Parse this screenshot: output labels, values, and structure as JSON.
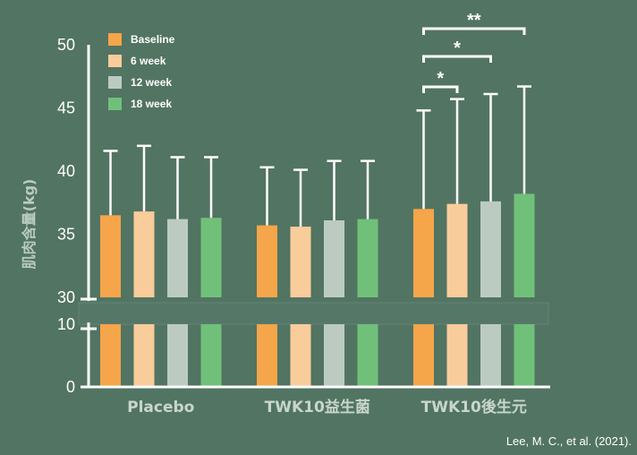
{
  "chart_data": {
    "type": "bar",
    "ylabel": "肌肉含量(kg)",
    "categories": [
      "Placebo",
      "TWK10益生菌",
      "TWK10後生元"
    ],
    "series": [
      {
        "name": "Baseline",
        "color": "#f5a54a",
        "values": [
          36.5,
          35.7,
          37.0
        ],
        "errors": [
          5.1,
          4.6,
          7.8
        ]
      },
      {
        "name": "6 week",
        "color": "#f9cc9b",
        "values": [
          36.8,
          35.6,
          37.4
        ],
        "errors": [
          5.2,
          4.5,
          8.3
        ]
      },
      {
        "name": "12 week",
        "color": "#bccbc2",
        "values": [
          36.2,
          36.1,
          37.6
        ],
        "errors": [
          4.9,
          4.7,
          8.5
        ]
      },
      {
        "name": "18 week",
        "color": "#70c07a",
        "values": [
          36.3,
          36.2,
          38.2
        ],
        "errors": [
          4.8,
          4.6,
          8.5
        ]
      }
    ],
    "axis_break": true,
    "yticks_upper": [
      30,
      35,
      40,
      45,
      50
    ],
    "yticks_lower": [
      0,
      10
    ],
    "ylim_upper": [
      30,
      50
    ],
    "ylim_lower": [
      0,
      10
    ],
    "grid": false,
    "legend_position": "top-left",
    "significance": [
      {
        "group": "TWK10後生元",
        "from": "Baseline",
        "to": "6 week",
        "label": "*"
      },
      {
        "group": "TWK10後生元",
        "from": "Baseline",
        "to": "12 week",
        "label": "*"
      },
      {
        "group": "TWK10後生元",
        "from": "Baseline",
        "to": "18 week",
        "label": "**"
      }
    ]
  },
  "credit": "Lee, M. C., et al. (2021)."
}
